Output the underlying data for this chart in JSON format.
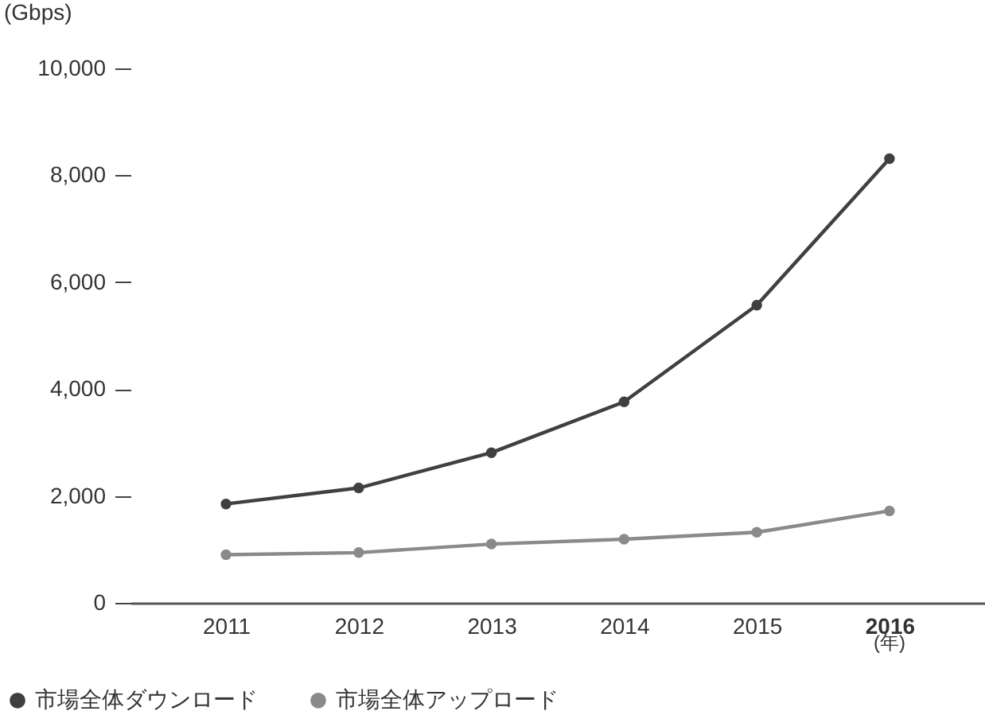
{
  "chart_data": {
    "type": "line",
    "ylabel": "(Gbps)",
    "xlabel": "(年)",
    "categories": [
      "2011",
      "2012",
      "2013",
      "2014",
      "2015",
      "2016"
    ],
    "series": [
      {
        "name": "市場全体ダウンロード",
        "color": "#404040",
        "values": [
          1850,
          2150,
          2810,
          3760,
          5570,
          8310
        ]
      },
      {
        "name": "市場全体アップロード",
        "color": "#8a8a8a",
        "values": [
          900,
          940,
          1100,
          1190,
          1320,
          1720
        ]
      }
    ],
    "ylim": [
      0,
      10000
    ],
    "yticks": [
      0,
      {
        "value": 2000,
        "label": "2,000"
      },
      {
        "value": 4000,
        "label": "4,000"
      },
      {
        "value": 6000,
        "label": "6,000"
      },
      {
        "value": 8000,
        "label": "8,000"
      },
      {
        "value": 10000,
        "label": "10,000"
      }
    ],
    "grid": false,
    "legend": "bottom left",
    "marker": "circle",
    "line_style": "solid"
  }
}
